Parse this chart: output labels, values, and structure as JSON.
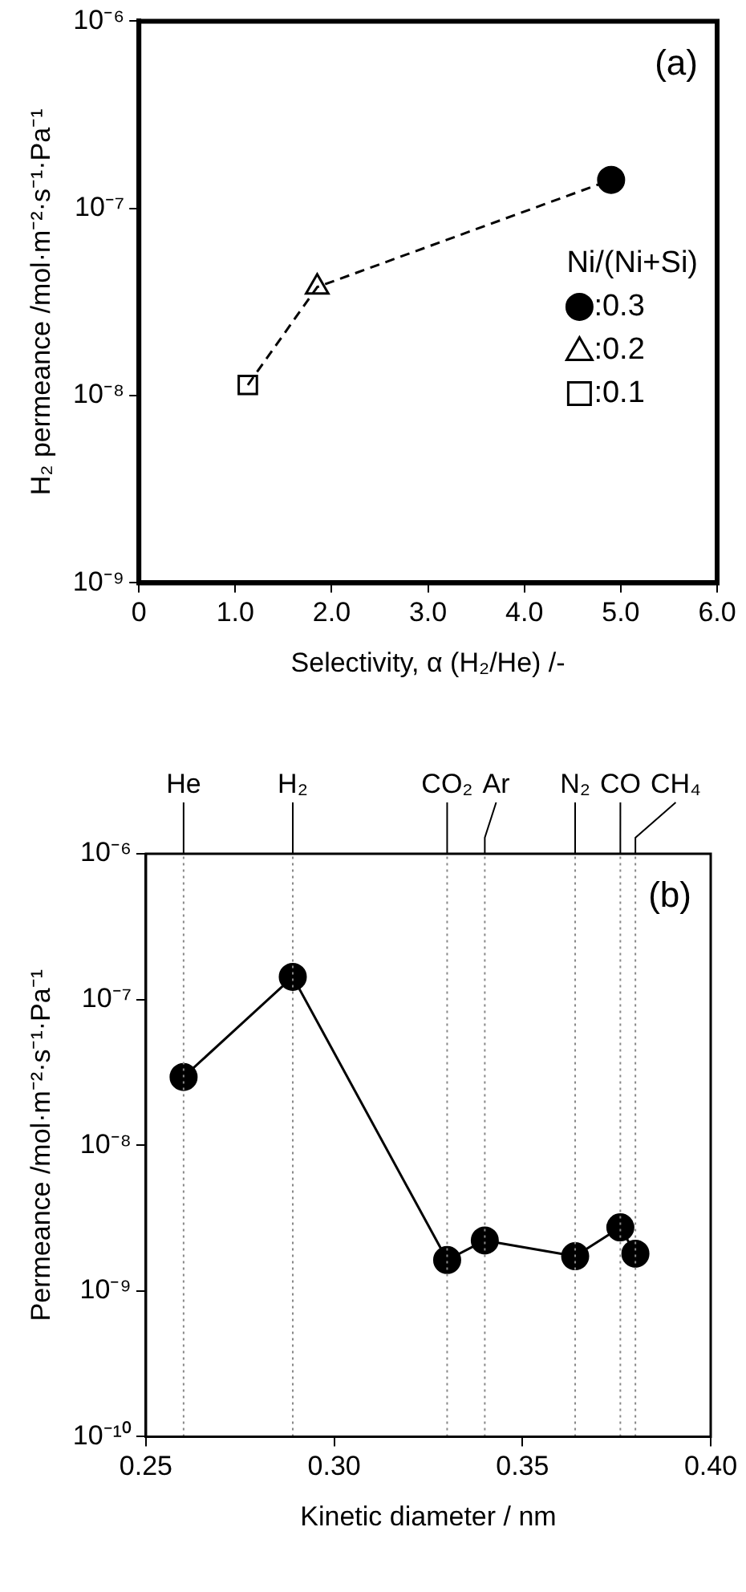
{
  "chart_data": [
    {
      "type": "scatter",
      "xlabel": "Selectivity, α (H₂/He) /-",
      "ylabel": "H₂ permeance /mol·m⁻²·s⁻¹·Pa⁻¹",
      "legend_title": "Ni/(Ni+Si)",
      "legend": "right",
      "log": "y",
      "grid": false,
      "annotations": [
        "(a)"
      ],
      "xlim": [
        0,
        6
      ],
      "xticks": [
        0,
        {
          "value": 1,
          "label": "1.0"
        },
        {
          "value": 2,
          "label": "2.0"
        },
        {
          "value": 3,
          "label": "3.0"
        },
        {
          "value": 4,
          "label": "4.0"
        },
        {
          "value": 5,
          "label": "5.0"
        },
        {
          "value": 6,
          "label": "6.0"
        }
      ],
      "ylim": [
        1e-09,
        1e-06
      ],
      "yticks": [
        {
          "value": 1e-09,
          "label": "10⁻⁹"
        },
        {
          "value": 1e-08,
          "label": "10⁻⁸"
        },
        {
          "value": 1e-07,
          "label": "10⁻⁷"
        },
        {
          "value": 1e-06,
          "label": "10⁻⁶"
        }
      ],
      "series": [
        {
          "type": "line",
          "x": [
            1.13,
            1.85,
            4.9
          ],
          "values": [
            1.14e-08,
            3.8e-08,
            1.42e-07
          ],
          "color": "#000000",
          "line_style": "dashed",
          "marker": "none"
        },
        {
          "name": ":0.3",
          "x": [
            4.9
          ],
          "values": [
            1.42e-07
          ],
          "color": "#000000",
          "marker": "circle"
        },
        {
          "name": ":0.2",
          "x": [
            1.85
          ],
          "values": [
            3.8e-08
          ],
          "color": "#000000",
          "marker": "triangle"
        },
        {
          "name": ":0.1",
          "x": [
            1.13
          ],
          "values": [
            1.14e-08
          ],
          "color": "#000000",
          "marker": "square"
        }
      ]
    },
    {
      "type": "line",
      "xlabel": "Kinetic diameter / nm",
      "ylabel": "Permeance /mol·m⁻²·s⁻¹·Pa⁻¹",
      "log": "y",
      "grid": false,
      "annotations": [
        "(b)"
      ],
      "marker": "circle",
      "line_style": "solid",
      "xlim": [
        0.25,
        0.4
      ],
      "xticks": [
        0.25,
        {
          "value": 0.3,
          "label": "0.30"
        },
        0.35,
        {
          "value": 0.4,
          "label": "0.40"
        }
      ],
      "ylim": [
        1e-10,
        1e-06
      ],
      "yticks": [
        {
          "value": 1e-10,
          "label": "10⁻¹⁰"
        },
        {
          "value": 1e-09,
          "label": "10⁻⁹"
        },
        {
          "value": 1e-08,
          "label": "10⁻⁸"
        },
        {
          "value": 1e-07,
          "label": "10⁻⁷"
        },
        {
          "value": 1e-06,
          "label": "10⁻⁶"
        }
      ],
      "x": [
        0.26,
        0.289,
        0.33,
        0.34,
        0.364,
        0.376,
        0.38
      ],
      "series": [
        {
          "values": [
            2.94e-08,
            1.43e-07,
            1.63e-09,
            2.22e-09,
            1.73e-09,
            2.73e-09,
            1.8e-09
          ],
          "color": "#000000"
        }
      ],
      "ref_lines": [
        {
          "axis": "x",
          "value": 0.26,
          "label": "He",
          "color": "#888888",
          "line_style": "dotted"
        },
        {
          "axis": "x",
          "value": 0.289,
          "label": "H₂",
          "color": "#888888",
          "line_style": "dotted"
        },
        {
          "axis": "x",
          "value": 0.33,
          "label": "CO₂",
          "color": "#888888",
          "line_style": "dotted"
        },
        {
          "axis": "x",
          "value": 0.34,
          "label": "Ar",
          "color": "#888888",
          "line_style": "dotted"
        },
        {
          "axis": "x",
          "value": 0.364,
          "label": "N₂",
          "color": "#888888",
          "line_style": "dotted"
        },
        {
          "axis": "x",
          "value": 0.376,
          "label": "CO",
          "color": "#888888",
          "line_style": "dotted"
        },
        {
          "axis": "x",
          "value": 0.38,
          "label": "CH₄",
          "color": "#888888",
          "line_style": "dotted"
        }
      ]
    }
  ]
}
